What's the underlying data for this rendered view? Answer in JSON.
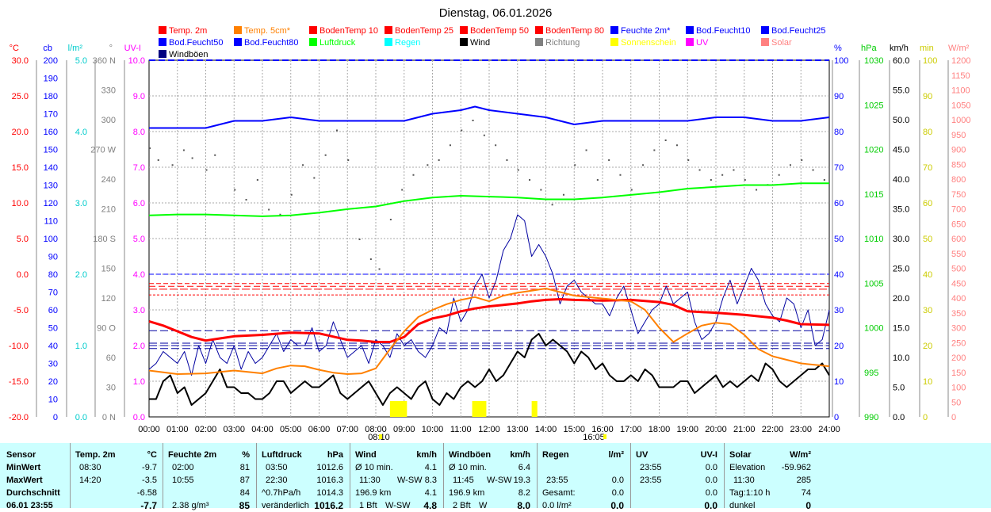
{
  "chart_data": {
    "type": "line",
    "title": "Dienstag, 06.01.2026",
    "legend": [
      {
        "name": "Temp. 2m",
        "color": "#ff0000"
      },
      {
        "name": "Temp. 5cm*",
        "color": "#ff8000"
      },
      {
        "name": "BodenTemp 10",
        "color": "#ff0000"
      },
      {
        "name": "BodenTemp 25",
        "color": "#ff0000"
      },
      {
        "name": "BodenTemp 50",
        "color": "#ff0000"
      },
      {
        "name": "BodenTemp 80",
        "color": "#ff0000"
      },
      {
        "name": "Feuchte 2m*",
        "color": "#0000ff"
      },
      {
        "name": "Bod.Feucht10",
        "color": "#0000ff"
      },
      {
        "name": "Bod.Feucht25",
        "color": "#0000ff"
      },
      {
        "name": "Bod.Feucht50",
        "color": "#0000ff"
      },
      {
        "name": "Bod.Feucht80",
        "color": "#0000ff"
      },
      {
        "name": "Luftdruck",
        "color": "#00ff00"
      },
      {
        "name": "Regen",
        "color": "#00ffff"
      },
      {
        "name": "Wind",
        "color": "#000000"
      },
      {
        "name": "Richtung",
        "color": "#808080"
      },
      {
        "name": "Sonnenschein",
        "color": "#ffff00"
      },
      {
        "name": "UV",
        "color": "#ff00ff"
      },
      {
        "name": "Solar",
        "color": "#ff8080"
      },
      {
        "name": "Windböen",
        "color": "#000080"
      }
    ],
    "x_ticks": [
      "00:00",
      "01:00",
      "02:00",
      "03:00",
      "04:00",
      "05:00",
      "06:00",
      "07:00",
      "08:00",
      "09:00",
      "10:00",
      "11:00",
      "12:00",
      "13:00",
      "14:00",
      "15:00",
      "16:00",
      "17:00",
      "18:00",
      "19:00",
      "20:00",
      "21:00",
      "22:00",
      "23:00",
      "24:00"
    ],
    "axes": {
      "temp": {
        "unit": "°C",
        "min": -20,
        "max": 30,
        "ticks": [
          "30.0",
          "25.0",
          "20.0",
          "15.0",
          "10.0",
          "5.0",
          "0.0",
          "-5.0",
          "-10.0",
          "-15.0",
          "-20.0"
        ],
        "color": "#ff0000"
      },
      "cb": {
        "unit": "cb",
        "min": 0,
        "max": 200,
        "ticks": [
          "200",
          "190",
          "180",
          "170",
          "160",
          "150",
          "140",
          "130",
          "120",
          "110",
          "100",
          "90",
          "80",
          "70",
          "60",
          "50",
          "40",
          "30",
          "20",
          "10",
          "0"
        ],
        "color": "#0000ff"
      },
      "rain": {
        "unit": "l/m²",
        "min": 0,
        "max": 5,
        "ticks": [
          "5.0",
          "4.0",
          "3.0",
          "2.0",
          "1.0",
          "0.0"
        ],
        "color": "#00cccc"
      },
      "dir": {
        "unit": "°",
        "ticks": [
          "360 N",
          "330",
          "300",
          "270 W",
          "240",
          "210",
          "180 S",
          "150",
          "120",
          "90 O",
          "60",
          "30",
          "0 N"
        ],
        "color": "#808080"
      },
      "uv": {
        "unit": "UV-I",
        "min": 0,
        "max": 10,
        "ticks": [
          "10.0",
          "9.0",
          "8.0",
          "7.0",
          "6.0",
          "5.0",
          "4.0",
          "3.0",
          "2.0",
          "1.0",
          "0.0"
        ],
        "color": "#ff00ff"
      },
      "hum": {
        "unit": "%",
        "min": 0,
        "max": 100,
        "ticks": [
          "100",
          "90",
          "80",
          "70",
          "60",
          "50",
          "40",
          "30",
          "20",
          "10",
          "0"
        ],
        "color": "#0000ff"
      },
      "press": {
        "unit": "hPa",
        "min": 990,
        "max": 1030,
        "ticks": [
          "1030",
          "1025",
          "1020",
          "1015",
          "1010",
          "1005",
          "1000",
          "995",
          "990"
        ],
        "color": "#00cc00"
      },
      "wind": {
        "unit": "km/h",
        "min": 0,
        "max": 60,
        "ticks": [
          "60.0",
          "55.0",
          "50.0",
          "45.0",
          "40.0",
          "35.0",
          "30.0",
          "25.0",
          "20.0",
          "15.0",
          "10.0",
          "5.0",
          "0.0"
        ],
        "color": "#000000"
      },
      "sun": {
        "unit": "min",
        "min": 0,
        "max": 100,
        "ticks": [
          "100",
          "90",
          "80",
          "70",
          "60",
          "50",
          "40",
          "30",
          "20",
          "10",
          "0"
        ],
        "color": "#cccc00"
      },
      "solar": {
        "unit": "W/m²",
        "min": 0,
        "max": 1200,
        "ticks": [
          "1200",
          "1150",
          "1100",
          "1050",
          "1000",
          "950",
          "900",
          "850",
          "800",
          "750",
          "700",
          "650",
          "600",
          "550",
          "500",
          "450",
          "400",
          "350",
          "300",
          "250",
          "200",
          "150",
          "100",
          "50",
          "0"
        ],
        "color": "#ff8080"
      }
    },
    "markers": {
      "sunrise": "08:10",
      "sunset": "16:05"
    },
    "series": [
      {
        "name": "Temp. 2m",
        "axis": "temp",
        "x": [
          0,
          0.5,
          1,
          1.5,
          2,
          2.5,
          3,
          4,
          5,
          6,
          7,
          7.5,
          8,
          8.5,
          9,
          9.5,
          10,
          10.5,
          11,
          11.5,
          12,
          12.5,
          13,
          13.5,
          14,
          14.5,
          15,
          16,
          17,
          18,
          18.5,
          19,
          20,
          21,
          22,
          22.5,
          23,
          24
        ],
        "values": [
          -6.6,
          -7.2,
          -8.0,
          -8.8,
          -9.3,
          -9.0,
          -8.7,
          -8.5,
          -8.2,
          -8.3,
          -9.2,
          -9.3,
          -9.5,
          -9.5,
          -8.8,
          -7.0,
          -6.2,
          -5.8,
          -5.2,
          -4.8,
          -4.5,
          -4.3,
          -4.1,
          -3.8,
          -3.6,
          -3.5,
          -3.6,
          -3.7,
          -3.6,
          -3.9,
          -4.3,
          -5.2,
          -5.4,
          -5.7,
          -6.1,
          -6.5,
          -7.0,
          -7.1
        ]
      },
      {
        "name": "Temp. 5cm*",
        "axis": "temp",
        "x": [
          0,
          1,
          2,
          3,
          4,
          4.5,
          5,
          5.5,
          6,
          6.5,
          7,
          7.5,
          8,
          8.5,
          9,
          9.5,
          10,
          10.5,
          11,
          11.5,
          12,
          12.5,
          13,
          13.5,
          14,
          15,
          16,
          17,
          17.5,
          18,
          18.5,
          19,
          19.5,
          20,
          20.5,
          21,
          21.5,
          22,
          22.5,
          23,
          24
        ],
        "values": [
          -13.5,
          -14.0,
          -13.9,
          -13.5,
          -13.9,
          -13.2,
          -12.8,
          -12.9,
          -13.4,
          -13.8,
          -14.0,
          -13.9,
          -13.2,
          -10.5,
          -8.0,
          -6.0,
          -5.0,
          -4.2,
          -3.6,
          -3.2,
          -3.8,
          -3.0,
          -2.6,
          -2.3,
          -2.0,
          -3.0,
          -3.4,
          -3.8,
          -5.0,
          -7.5,
          -9.5,
          -8.3,
          -7.2,
          -6.8,
          -7.0,
          -8.5,
          -10.5,
          -11.5,
          -12.0,
          -12.5,
          -12.9
        ]
      },
      {
        "name": "Feuchte 2m*",
        "axis": "hum",
        "x": [
          0,
          2,
          2.5,
          3,
          4,
          5,
          6,
          7,
          8,
          9,
          10,
          11,
          11.5,
          12,
          13,
          14,
          15,
          16,
          17,
          18,
          19,
          20,
          21,
          22,
          23,
          24
        ],
        "values": [
          81,
          81,
          82,
          83,
          83,
          84,
          83,
          83,
          83,
          83,
          85,
          86,
          87,
          86,
          85,
          84,
          82,
          83,
          83,
          83,
          83,
          84,
          84,
          83,
          83,
          84
        ]
      },
      {
        "name": "Luftdruck",
        "axis": "press",
        "x": [
          0,
          1,
          2,
          3,
          4,
          5,
          6,
          7,
          8,
          9,
          10,
          11,
          12,
          13,
          14,
          15,
          16,
          17,
          18,
          19,
          20,
          21,
          22,
          23,
          24
        ],
        "values": [
          1012.6,
          1012.7,
          1012.7,
          1012.6,
          1012.5,
          1012.6,
          1012.9,
          1013.3,
          1013.6,
          1014.2,
          1014.6,
          1014.8,
          1014.7,
          1014.6,
          1014.4,
          1014.4,
          1014.6,
          1014.9,
          1015.2,
          1015.6,
          1015.8,
          1016.0,
          1016.0,
          1016.2,
          1016.2
        ]
      }
    ],
    "soil_temps": [
      -1.3,
      -1.7,
      -2.1,
      -2.9
    ],
    "gust_avg_kmh": [
      14.5,
      12.0,
      11.5,
      12.4
    ],
    "wind_series_kmh": {
      "x_step": 0.25,
      "wind": [
        3,
        3,
        6,
        7,
        4,
        5,
        2,
        3,
        4,
        6,
        8,
        5,
        5,
        4,
        4,
        3,
        3,
        4,
        6,
        6,
        4,
        5,
        6,
        5,
        5,
        6,
        7,
        4,
        3,
        4,
        5,
        6,
        4,
        2,
        4,
        5,
        4,
        3,
        5,
        6,
        3,
        2,
        4,
        3,
        5,
        6,
        5,
        6,
        8,
        6,
        7,
        9,
        11,
        10,
        13,
        14,
        12,
        13,
        12,
        11,
        9,
        11,
        10,
        8,
        9,
        7,
        6,
        6,
        7,
        6,
        8,
        7,
        5,
        5,
        5,
        6,
        6,
        4,
        5,
        6,
        7,
        5,
        6,
        5,
        6,
        7,
        6,
        9,
        8,
        6,
        5,
        6,
        7,
        8,
        8,
        9,
        7
      ],
      "gust": [
        8,
        9,
        11,
        10,
        9,
        11,
        7,
        12,
        9,
        13,
        10,
        9,
        12,
        8,
        11,
        9,
        10,
        12,
        14,
        11,
        13,
        12,
        12,
        15,
        11,
        12,
        16,
        13,
        10,
        11,
        12,
        9,
        13,
        12,
        10,
        14,
        12,
        13,
        11,
        10,
        12,
        15,
        14,
        20,
        16,
        18,
        22,
        24,
        20,
        23,
        28,
        30,
        34,
        33,
        27,
        29,
        27,
        24,
        19,
        22,
        23,
        21,
        20,
        19,
        19,
        17,
        20,
        22,
        18,
        14,
        16,
        18,
        19,
        22,
        19,
        20,
        21,
        16,
        13,
        14,
        16,
        20,
        23,
        19,
        22,
        25,
        23,
        19,
        17,
        16,
        20,
        19,
        15,
        18,
        12,
        13,
        18
      ]
    },
    "direction_points": [
      [
        0,
        272
      ],
      [
        0.3,
        260
      ],
      [
        0.8,
        255
      ],
      [
        1.2,
        270
      ],
      [
        1.5,
        262
      ],
      [
        2,
        250
      ],
      [
        2.3,
        265
      ],
      [
        3,
        230
      ],
      [
        3.4,
        220
      ],
      [
        3.8,
        240
      ],
      [
        4.2,
        210
      ],
      [
        4.6,
        205
      ],
      [
        5,
        225
      ],
      [
        5.4,
        255
      ],
      [
        5.8,
        242
      ],
      [
        6.2,
        265
      ],
      [
        6.6,
        290
      ],
      [
        7,
        260
      ],
      [
        7.4,
        180
      ],
      [
        7.8,
        160
      ],
      [
        8.1,
        150
      ],
      [
        8.5,
        200
      ],
      [
        8.9,
        230
      ],
      [
        9.3,
        245
      ],
      [
        9.8,
        255
      ],
      [
        10.2,
        260
      ],
      [
        10.6,
        275
      ],
      [
        11,
        290
      ],
      [
        11.4,
        300
      ],
      [
        11.8,
        285
      ],
      [
        12.2,
        275
      ],
      [
        12.6,
        260
      ],
      [
        13,
        250
      ],
      [
        13.4,
        240
      ],
      [
        13.8,
        230
      ],
      [
        14.2,
        215
      ],
      [
        14.6,
        225
      ],
      [
        15,
        255
      ],
      [
        15.4,
        270
      ],
      [
        15.8,
        240
      ],
      [
        16.2,
        260
      ],
      [
        16.6,
        245
      ],
      [
        17,
        230
      ],
      [
        17.4,
        255
      ],
      [
        17.8,
        270
      ],
      [
        18.2,
        280
      ],
      [
        18.6,
        275
      ],
      [
        19,
        260
      ],
      [
        19.4,
        250
      ],
      [
        19.8,
        240
      ],
      [
        20.2,
        245
      ],
      [
        20.6,
        250
      ],
      [
        21,
        240
      ],
      [
        21.4,
        230
      ],
      [
        21.8,
        235
      ],
      [
        22.2,
        245
      ],
      [
        22.6,
        255
      ],
      [
        23,
        260
      ],
      [
        23.4,
        250
      ],
      [
        23.8,
        240
      ]
    ],
    "sunshine_blocks": [
      [
        8.5,
        9.1
      ],
      [
        11.4,
        11.9
      ],
      [
        13.5,
        13.7
      ]
    ]
  },
  "stats": {
    "sensor": {
      "header": "Sensor",
      "rows": [
        "MinWert",
        "MaxWert",
        "Durchschnitt",
        "06.01 23:55"
      ]
    },
    "temp2m": {
      "header": "Temp. 2m",
      "unit": "°C",
      "rows": [
        [
          "08:30",
          "-9.7"
        ],
        [
          "14:20",
          "-3.5"
        ],
        [
          "",
          "-6.58"
        ],
        [
          "",
          "-7.7"
        ]
      ]
    },
    "feuchte": {
      "header": "Feuchte 2m",
      "unit": "%",
      "rows": [
        [
          "02:00",
          "81"
        ],
        [
          "10:55",
          "87"
        ],
        [
          "",
          "84"
        ],
        [
          "2.38 g/m³",
          "85"
        ]
      ]
    },
    "luftdruck": {
      "header": "Luftdruck",
      "unit": "hPa",
      "rows": [
        [
          "03:50",
          "1012.6"
        ],
        [
          "22:30",
          "1016.3"
        ],
        [
          "^0.7hPa/h",
          "1014.3"
        ],
        [
          "veränderlich",
          "1016.2"
        ]
      ]
    },
    "wind": {
      "header": "Wind",
      "unit": "km/h",
      "rows": [
        [
          "Ø 10 min.",
          "",
          "4.1"
        ],
        [
          "11:30",
          "W-SW",
          "8.3"
        ],
        [
          "196.9 km",
          "",
          "4.1"
        ],
        [
          "1 Bft",
          "W-SW",
          "4.8"
        ]
      ]
    },
    "boeen": {
      "header": "Windböen",
      "unit": "km/h",
      "rows": [
        [
          "Ø 10 min.",
          "",
          "6.4"
        ],
        [
          "11:45",
          "W-SW",
          "19.3"
        ],
        [
          "196.9 km",
          "",
          "8.2"
        ],
        [
          "2 Bft",
          "W",
          "8.0"
        ]
      ]
    },
    "regen": {
      "header": "Regen",
      "unit": "l/m²",
      "rows": [
        [
          "",
          ""
        ],
        [
          "23:55",
          "0.0"
        ],
        [
          "Gesamt:",
          "0.0"
        ],
        [
          "0.0 l/m²",
          "0.0"
        ]
      ]
    },
    "uv": {
      "header": "UV",
      "unit": "UV-I",
      "rows": [
        [
          "23:55",
          "0.0"
        ],
        [
          "23:55",
          "0.0"
        ],
        [
          "",
          "0.0"
        ],
        [
          "",
          "0.0"
        ]
      ]
    },
    "solar": {
      "header": "Solar",
      "unit": "W/m²",
      "rows": [
        [
          "Elevation",
          "-59.962"
        ],
        [
          "11:30",
          "285"
        ],
        [
          "Tag:1:10 h",
          "74"
        ],
        [
          "dunkel",
          "0"
        ]
      ]
    }
  }
}
